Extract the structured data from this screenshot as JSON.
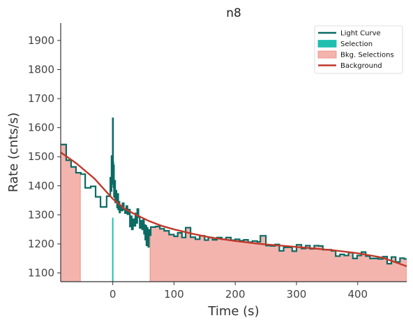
{
  "chart_data": {
    "type": "line",
    "title": "n8",
    "xlabel": "Time (s)",
    "ylabel": "Rate (cnts/s)",
    "xlim": [
      -85,
      480
    ],
    "ylim": [
      1070,
      1960
    ],
    "xticks": [
      0,
      100,
      200,
      300,
      400
    ],
    "yticks": [
      1100,
      1200,
      1300,
      1400,
      1500,
      1600,
      1700,
      1800,
      1900
    ],
    "legend_position": "top-right",
    "legend": [
      {
        "label": "Light Curve",
        "kind": "line",
        "color": "#0b6b63"
      },
      {
        "label": "Selection",
        "kind": "patch",
        "color": "#1fbfb0"
      },
      {
        "label": "Bkg. Selections",
        "kind": "patch",
        "color": "#f4b4ae"
      },
      {
        "label": "Background",
        "kind": "line",
        "color": "#c0392b"
      }
    ],
    "colors": {
      "light_curve": "#0b6b63",
      "selection": "#1fbfb0",
      "bkg_fill": "#f4b4ae",
      "bkg_edge": "#e9877d",
      "background": "#c0392b"
    },
    "selection_range": [
      0,
      0.8
    ],
    "bkg_selections": [
      [
        -85,
        -53
      ],
      [
        61,
        480
      ]
    ],
    "light_curve": [
      [
        -85,
        1542
      ],
      [
        -76,
        1488
      ],
      [
        -68,
        1465
      ],
      [
        -60,
        1445
      ],
      [
        -52,
        1440
      ],
      [
        -45,
        1393
      ],
      [
        -36,
        1398
      ],
      [
        -28,
        1362
      ],
      [
        -20,
        1327
      ],
      [
        -10,
        1364
      ],
      [
        -4,
        1428
      ],
      [
        -3,
        1382
      ],
      [
        -2,
        1502
      ],
      [
        -1.5,
        1453
      ],
      [
        -1,
        1491
      ],
      [
        -0.5,
        1407
      ],
      [
        0,
        1632
      ],
      [
        0.5,
        1480
      ],
      [
        1,
        1396
      ],
      [
        1.5,
        1470
      ],
      [
        2,
        1362
      ],
      [
        3,
        1417
      ],
      [
        4,
        1343
      ],
      [
        5,
        1383
      ],
      [
        6,
        1352
      ],
      [
        7,
        1325
      ],
      [
        8,
        1372
      ],
      [
        9,
        1318
      ],
      [
        10,
        1345
      ],
      [
        11,
        1308
      ],
      [
        12,
        1332
      ],
      [
        14,
        1315
      ],
      [
        16,
        1340
      ],
      [
        18,
        1318
      ],
      [
        20,
        1306
      ],
      [
        22,
        1330
      ],
      [
        24,
        1302
      ],
      [
        26,
        1318
      ],
      [
        28,
        1260
      ],
      [
        30,
        1295
      ],
      [
        31,
        1250
      ],
      [
        33,
        1285
      ],
      [
        35,
        1262
      ],
      [
        37,
        1305
      ],
      [
        39,
        1272
      ],
      [
        40,
        1320
      ],
      [
        42,
        1292
      ],
      [
        44,
        1255
      ],
      [
        46,
        1280
      ],
      [
        48,
        1250
      ],
      [
        50,
        1285
      ],
      [
        51,
        1235
      ],
      [
        52,
        1265
      ],
      [
        53,
        1215
      ],
      [
        54,
        1262
      ],
      [
        55,
        1195
      ],
      [
        56,
        1255
      ],
      [
        57,
        1220
      ],
      [
        58,
        1190
      ],
      [
        59,
        1248
      ],
      [
        60,
        1230
      ],
      [
        62,
        1258
      ],
      [
        70,
        1260
      ],
      [
        77,
        1252
      ],
      [
        84,
        1245
      ],
      [
        92,
        1232
      ],
      [
        100,
        1226
      ],
      [
        106,
        1238
      ],
      [
        113,
        1222
      ],
      [
        119,
        1256
      ],
      [
        127,
        1223
      ],
      [
        135,
        1216
      ],
      [
        142,
        1228
      ],
      [
        150,
        1213
      ],
      [
        156,
        1222
      ],
      [
        163,
        1214
      ],
      [
        170,
        1222
      ],
      [
        178,
        1216
      ],
      [
        185,
        1222
      ],
      [
        193,
        1213
      ],
      [
        200,
        1216
      ],
      [
        207,
        1211
      ],
      [
        214,
        1214
      ],
      [
        221,
        1206
      ],
      [
        228,
        1210
      ],
      [
        236,
        1207
      ],
      [
        241,
        1228
      ],
      [
        250,
        1194
      ],
      [
        258,
        1193
      ],
      [
        265,
        1198
      ],
      [
        272,
        1176
      ],
      [
        279,
        1188
      ],
      [
        286,
        1188
      ],
      [
        293,
        1175
      ],
      [
        300,
        1197
      ],
      [
        308,
        1184
      ],
      [
        315,
        1194
      ],
      [
        322,
        1183
      ],
      [
        329,
        1194
      ],
      [
        336,
        1193
      ],
      [
        343,
        1180
      ],
      [
        350,
        1180
      ],
      [
        357,
        1176
      ],
      [
        364,
        1158
      ],
      [
        371,
        1164
      ],
      [
        378,
        1160
      ],
      [
        385,
        1170
      ],
      [
        392,
        1150
      ],
      [
        399,
        1160
      ],
      [
        406,
        1172
      ],
      [
        413,
        1158
      ],
      [
        420,
        1150
      ],
      [
        427,
        1150
      ],
      [
        434,
        1148
      ],
      [
        441,
        1156
      ],
      [
        448,
        1132
      ],
      [
        455,
        1155
      ],
      [
        462,
        1138
      ],
      [
        469,
        1151
      ],
      [
        476,
        1148
      ],
      [
        480,
        1148
      ]
    ],
    "background": [
      [
        -85,
        1515
      ],
      [
        -60,
        1478
      ],
      [
        -30,
        1425
      ],
      [
        0,
        1355
      ],
      [
        20,
        1320
      ],
      [
        40,
        1298
      ],
      [
        60,
        1278
      ],
      [
        80,
        1262
      ],
      [
        100,
        1250
      ],
      [
        130,
        1235
      ],
      [
        160,
        1222
      ],
      [
        200,
        1210
      ],
      [
        240,
        1200
      ],
      [
        280,
        1193
      ],
      [
        320,
        1186
      ],
      [
        360,
        1178
      ],
      [
        400,
        1168
      ],
      [
        440,
        1153
      ],
      [
        480,
        1123
      ]
    ]
  }
}
